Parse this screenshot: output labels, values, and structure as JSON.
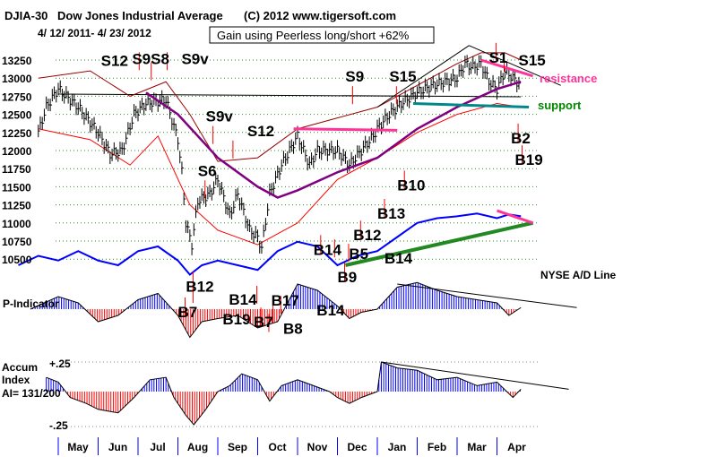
{
  "header": {
    "ticker": "DJIA-30",
    "name": "Dow Jones Industrial Average",
    "copyright": "(C) 2012 www.tigersoft.com",
    "date_range": "4/ 12/ 2011- 4/ 23/ 2012",
    "gain_box": "Gain using Peerless long/short +62%"
  },
  "chart_data": {
    "type": "line",
    "title": "DJIA-30 Dow Jones Industrial Average",
    "x_unit": "months since May 1 2011",
    "months": [
      "May",
      "Jun",
      "Jul",
      "Aug",
      "Sep",
      "Oct",
      "Nov",
      "Dec",
      "Jan",
      "Feb",
      "Mar",
      "Apr"
    ],
    "yticks": [
      13250,
      13000,
      12750,
      12500,
      12250,
      12000,
      11750,
      11500,
      11250,
      11000,
      10750,
      10500
    ],
    "ylim": [
      10500,
      13250
    ],
    "price": {
      "t": [
        -0.5,
        -0.3,
        0,
        0.1,
        0.5,
        1.0,
        1.3,
        1.6,
        1.9,
        2.2,
        2.7,
        3.0,
        3.1,
        3.2,
        3.35,
        3.5,
        3.8,
        4.0,
        4.3,
        4.5,
        4.8,
        5.0,
        5.1,
        5.3,
        5.6,
        5.9,
        6.0,
        6.3,
        6.5,
        6.7,
        7.0,
        7.3,
        7.6,
        7.9,
        8.0,
        8.3,
        8.6,
        9.0,
        9.4,
        9.7,
        10.0,
        10.2,
        10.4,
        10.6,
        10.8,
        11.0,
        11.2,
        11.4,
        11.6
      ],
      "v": [
        12250,
        12600,
        12850,
        12800,
        12600,
        12250,
        11950,
        12000,
        12500,
        12650,
        12700,
        12150,
        11700,
        11000,
        10700,
        11300,
        11400,
        11600,
        11100,
        11400,
        10900,
        10800,
        10650,
        11400,
        11800,
        12100,
        12200,
        11800,
        12000,
        12000,
        12000,
        11800,
        12000,
        12200,
        12300,
        12500,
        12650,
        12800,
        12900,
        12950,
        13000,
        13200,
        13150,
        13200,
        12950,
        12850,
        13100,
        13000,
        12900
      ]
    },
    "ma_long": {
      "t": [
        2.2,
        3,
        4,
        5,
        5.5,
        6,
        7,
        8,
        9,
        10,
        11,
        11.6
      ],
      "v": [
        12800,
        12500,
        11900,
        11500,
        11350,
        11450,
        11700,
        11900,
        12300,
        12600,
        12850,
        12950
      ]
    },
    "band_upper": {
      "t": [
        -0.5,
        0.8,
        1.8,
        2.7,
        3.3,
        4,
        5,
        6,
        7,
        8,
        9,
        10,
        10.6,
        11.2,
        11.6
      ],
      "v": [
        13000,
        13100,
        12750,
        12950,
        12500,
        11850,
        11900,
        12300,
        12450,
        12600,
        12900,
        13200,
        13350,
        13350,
        13250
      ]
    },
    "band_lower": {
      "t": [
        -0.5,
        0.8,
        1.8,
        2.5,
        3.3,
        4,
        5,
        6,
        7,
        8,
        9,
        10,
        11,
        11.6
      ],
      "v": [
        12300,
        12150,
        11800,
        12200,
        11250,
        10900,
        10700,
        11000,
        11600,
        11900,
        12250,
        12500,
        12650,
        12600
      ]
    },
    "horizontal_line_value": 12780,
    "resistance": {
      "label": "resistance",
      "color": "#ff3399"
    },
    "support": {
      "label": "support",
      "color": "#008800",
      "value": 12620
    },
    "ad_line": {
      "label": "NYSE A/D Line",
      "t": [
        -1,
        -0.5,
        0,
        0.5,
        1,
        1.5,
        2,
        2.5,
        3,
        3.3,
        3.6,
        4,
        4.5,
        5,
        5.5,
        6,
        6.5,
        7,
        7.5,
        8,
        8.5,
        9,
        9.5,
        10,
        10.5,
        11,
        11.3,
        11.6
      ],
      "v": [
        40,
        50,
        45,
        55,
        45,
        40,
        55,
        60,
        45,
        30,
        40,
        45,
        40,
        35,
        55,
        65,
        60,
        40,
        50,
        55,
        70,
        85,
        90,
        92,
        95,
        90,
        94,
        92
      ]
    },
    "p_indicator": {
      "label": "P-Indicator",
      "t": [
        -0.7,
        0,
        0.5,
        1,
        1.5,
        2,
        2.5,
        3,
        3.3,
        3.6,
        4,
        4.5,
        5,
        5.5,
        6,
        6.5,
        7,
        7.3,
        7.6,
        8,
        8.5,
        9,
        9.5,
        10,
        10.5,
        11,
        11.3,
        11.6
      ],
      "v": [
        0,
        40,
        20,
        -40,
        -20,
        30,
        50,
        -20,
        -90,
        -40,
        -30,
        -20,
        -60,
        -40,
        80,
        60,
        10,
        -30,
        -10,
        0,
        70,
        85,
        60,
        40,
        30,
        20,
        -20,
        5
      ]
    },
    "accum_index": {
      "label_line1": "Accum",
      "label_line2": "Index",
      "reading": "AI= 131/200",
      "top_tick": "+.25",
      "bottom_tick": "-.25",
      "t": [
        -0.3,
        0,
        0.3,
        0.7,
        1,
        1.5,
        1.9,
        2.3,
        2.7,
        2.9,
        3.2,
        3.4,
        3.7,
        4,
        4.3,
        4.6,
        5,
        5.3,
        5.6,
        6,
        6.4,
        6.8,
        7,
        7.3,
        7.6,
        8,
        8.1,
        8.5,
        9,
        9.5,
        10,
        10.5,
        11,
        11.4,
        11.6
      ],
      "v": [
        0.12,
        0.08,
        -0.05,
        -0.1,
        -0.15,
        -0.18,
        -0.05,
        0.1,
        0.12,
        -0.05,
        -0.2,
        -0.28,
        -0.15,
        0,
        0.05,
        0.15,
        0.1,
        -0.08,
        0.05,
        0.1,
        0.05,
        0,
        -0.05,
        -0.1,
        -0.05,
        0,
        0.25,
        0.2,
        0.18,
        0.1,
        0.12,
        0.05,
        0.08,
        -0.05,
        0.02
      ]
    },
    "signals": [
      {
        "label": "S9S8",
        "t": 1.85,
        "price": 13420
      },
      {
        "label": "S9v",
        "t": 2.55,
        "price": 13420
      },
      {
        "label": "S12",
        "t": 2.15,
        "price": 13280
      },
      {
        "label": "S9v",
        "t": 3.7,
        "price": 12400
      },
      {
        "label": "S12",
        "t": 4.2,
        "price": 12200
      },
      {
        "label": "S6",
        "t": 3.5,
        "price": 11650
      },
      {
        "label": "S9",
        "t": 7.2,
        "price": 12950
      },
      {
        "label": "S15",
        "t": 8.3,
        "price": 12950
      },
      {
        "label": "S1",
        "t": 10.8,
        "price": 13550
      },
      {
        "label": "S15",
        "t": 11,
        "price": 13400
      },
      {
        "label": "B10",
        "t": 8.5,
        "price": 11450
      },
      {
        "label": "B2",
        "t": 11.35,
        "price": 12100
      },
      {
        "label": "B19",
        "t": 11.45,
        "price": 11800
      },
      {
        "label": "B13",
        "t": 8.0,
        "price": 11060
      },
      {
        "label": "B12",
        "t": 7.4,
        "price": 10760
      },
      {
        "label": "B14",
        "t": 6.4,
        "price": 10560
      },
      {
        "label": "B5",
        "t": 6.75,
        "price": 10500
      },
      {
        "label": "B14",
        "t": 7.1,
        "price": 10440
      },
      {
        "label": "B9",
        "t": 7.0,
        "price": 10180
      },
      {
        "label": "B12",
        "t": 3.2,
        "price": 10050
      },
      {
        "label": "B14",
        "t": 3.2,
        "price": 9870
      },
      {
        "label": "B7",
        "t": 3.0,
        "price": 9700
      },
      {
        "label": "B17",
        "t": 4.8,
        "price": 9860
      },
      {
        "label": "B14",
        "t": 5.4,
        "price": 9720
      },
      {
        "label": "B7",
        "t": 4.9,
        "price": 9560
      },
      {
        "label": "B19",
        "t": 5.2,
        "price": 9600
      },
      {
        "label": "B8",
        "t": 5.1,
        "price": 9470
      }
    ]
  }
}
